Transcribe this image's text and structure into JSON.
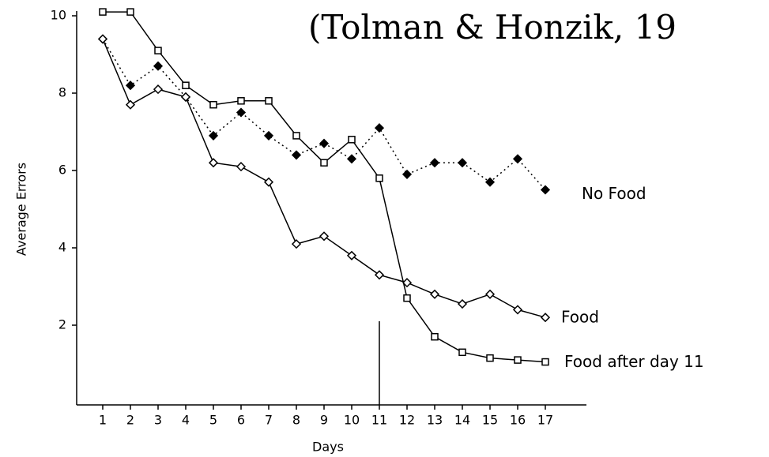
{
  "chart_data": {
    "type": "line",
    "title": "(Tolman & Honzik, 19",
    "x_label": "Days",
    "y_label": "Average Errors",
    "x": [
      1,
      2,
      3,
      4,
      5,
      6,
      7,
      8,
      9,
      10,
      11,
      12,
      13,
      14,
      15,
      16,
      17
    ],
    "xlim": [
      0,
      18.5
    ],
    "xticks": [
      1,
      2,
      3,
      4,
      5,
      6,
      7,
      8,
      9,
      10,
      11,
      12,
      13,
      14,
      15,
      16,
      17
    ],
    "ylim": [
      0,
      10
    ],
    "yticks": [
      2,
      4,
      6,
      8,
      10
    ],
    "series": [
      {
        "name": "No Food",
        "color": "#000000",
        "line": "dotted",
        "marker": "filled-diamond",
        "values": [
          9.4,
          8.2,
          8.7,
          7.9,
          6.9,
          7.5,
          6.9,
          6.4,
          6.7,
          6.3,
          7.1,
          5.9,
          6.2,
          6.2,
          5.7,
          6.3,
          5.5
        ]
      },
      {
        "name": "Food",
        "color": "#000000",
        "line": "solid",
        "marker": "open-diamond",
        "values": [
          9.4,
          7.7,
          8.1,
          7.9,
          6.2,
          6.1,
          5.7,
          4.1,
          4.3,
          3.8,
          3.3,
          3.1,
          2.8,
          2.55,
          2.8,
          2.4,
          2.2
        ]
      },
      {
        "name": "Food after day 11",
        "color": "#000000",
        "line": "solid",
        "marker": "open-square",
        "values": [
          10.1,
          10.1,
          9.1,
          8.2,
          7.7,
          7.8,
          7.8,
          6.9,
          6.2,
          6.8,
          5.8,
          2.7,
          1.7,
          1.3,
          1.15,
          1.1,
          1.05
        ]
      }
    ]
  }
}
